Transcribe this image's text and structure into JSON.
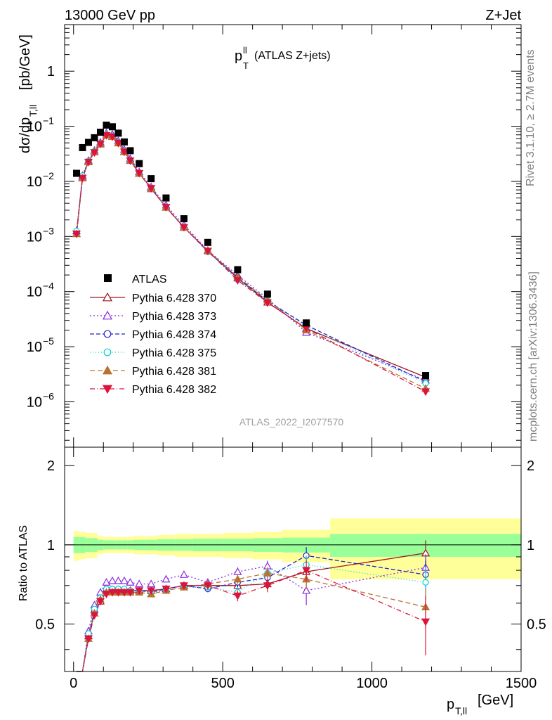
{
  "header": {
    "left": "13000 GeV pp",
    "right": "Z+Jet",
    "panel_title_main": "p",
    "panel_title_sup": "ll",
    "panel_title_sub": "T",
    "panel_title_rest": "(ATLAS Z+jets)",
    "analysis_id": "ATLAS_2022_I2077570",
    "side_rivet": "Rivet 3.1.10, ≥ 2.7M events",
    "side_mcplots": "mcplots.cern.ch [arXiv:1306.3436]"
  },
  "axes": {
    "ylabel_main": "dσ/dp",
    "ylabel_main_sub": "T,ll",
    "ylabel_main_unit": "[pb/GeV]",
    "ylabel_ratio": "Ratio to ATLAS",
    "xlabel_main": "p",
    "xlabel_sub": "T,ll",
    "xlabel_unit": "[GeV]",
    "x_ticks": [
      "0",
      "500",
      "1000",
      "1500"
    ],
    "y_main_ticks": [
      {
        "base": "10",
        "exp": "−6",
        "v": 1e-06
      },
      {
        "base": "10",
        "exp": "−5",
        "v": 1e-05
      },
      {
        "base": "10",
        "exp": "−4",
        "v": 0.0001
      },
      {
        "base": "10",
        "exp": "−3",
        "v": 0.001
      },
      {
        "base": "10",
        "exp": "−2",
        "v": 0.01
      },
      {
        "base": "10",
        "exp": "−1",
        "v": 0.1
      },
      {
        "base": "1",
        "exp": "",
        "v": 1
      }
    ],
    "y_ratio_ticks": [
      "0.5",
      "1",
      "2"
    ]
  },
  "chart_data": {
    "type": "scatter",
    "xlim": [
      -30,
      1500
    ],
    "ylim_main": [
      1.5e-07,
      7
    ],
    "ylim_ratio": [
      0.33,
      2.35
    ],
    "ylog": true,
    "x": [
      10,
      30,
      50,
      70,
      90,
      110,
      130,
      150,
      170,
      190,
      220,
      260,
      310,
      370,
      450,
      550,
      650,
      780,
      1180
    ],
    "xerr_edges": [
      0,
      20,
      40,
      60,
      80,
      100,
      120,
      140,
      160,
      180,
      200,
      240,
      280,
      340,
      400,
      500,
      600,
      700,
      860,
      1500
    ],
    "atlas": [
      0.014,
      0.041,
      0.051,
      0.062,
      0.078,
      0.105,
      0.098,
      0.075,
      0.052,
      0.036,
      0.021,
      0.0112,
      0.005,
      0.0021,
      0.00078,
      0.00025,
      9e-05,
      2.7e-05,
      3e-06
    ],
    "ratio_band_inner": [
      0.07,
      0.07,
      0.06,
      0.06,
      0.045,
      0.04,
      0.04,
      0.04,
      0.04,
      0.04,
      0.045,
      0.045,
      0.05,
      0.05,
      0.055,
      0.055,
      0.06,
      0.065,
      0.1
    ],
    "ratio_band_outer": [
      0.13,
      0.12,
      0.11,
      0.11,
      0.08,
      0.07,
      0.07,
      0.07,
      0.07,
      0.07,
      0.08,
      0.08,
      0.09,
      0.1,
      0.1,
      0.11,
      0.12,
      0.14,
      0.26
    ],
    "series": [
      {
        "name": "Pythia 6.428 370",
        "color": "#a0141e",
        "marker": "triangle-up-open",
        "dash": "",
        "ratio": [
          0.08,
          0.29,
          0.45,
          0.55,
          0.61,
          0.66,
          0.67,
          0.67,
          0.67,
          0.67,
          0.67,
          0.67,
          0.68,
          0.7,
          0.7,
          0.7,
          0.71,
          0.79,
          0.93
        ],
        "ratio_err": [
          0,
          0,
          0,
          0,
          0,
          0,
          0,
          0,
          0,
          0,
          0,
          0,
          0,
          0,
          0,
          0,
          0,
          0.06,
          0.11
        ]
      },
      {
        "name": "Pythia 6.428 373",
        "color": "#8a2be2",
        "marker": "triangle-up-open",
        "dash": "2,3",
        "ratio": [
          0.09,
          0.31,
          0.47,
          0.59,
          0.66,
          0.72,
          0.73,
          0.73,
          0.73,
          0.72,
          0.71,
          0.71,
          0.74,
          0.77,
          0.72,
          0.79,
          0.83,
          0.67,
          0.82
        ],
        "ratio_err": [
          0,
          0,
          0,
          0,
          0,
          0,
          0,
          0,
          0,
          0,
          0,
          0,
          0,
          0,
          0.02,
          0.03,
          0.04,
          0.08,
          0.1
        ]
      },
      {
        "name": "Pythia 6.428 374",
        "color": "#2222cc",
        "marker": "circle-open",
        "dash": "6,3",
        "ratio": [
          0.08,
          0.3,
          0.45,
          0.56,
          0.63,
          0.67,
          0.68,
          0.68,
          0.67,
          0.67,
          0.67,
          0.66,
          0.68,
          0.7,
          0.68,
          0.72,
          0.75,
          0.91,
          0.77
        ],
        "ratio_err": [
          0,
          0,
          0,
          0,
          0,
          0,
          0,
          0,
          0,
          0,
          0,
          0,
          0,
          0,
          0.02,
          0.03,
          0.04,
          0.07,
          0.1
        ]
      },
      {
        "name": "Pythia 6.428 375",
        "color": "#00cfcf",
        "marker": "circle-open",
        "dash": "1,3",
        "ratio": [
          0.09,
          0.31,
          0.46,
          0.57,
          0.63,
          0.68,
          0.68,
          0.68,
          0.68,
          0.67,
          0.67,
          0.66,
          0.67,
          0.69,
          0.69,
          0.66,
          0.78,
          0.84,
          0.72
        ],
        "ratio_err": [
          0,
          0,
          0,
          0,
          0,
          0,
          0,
          0,
          0,
          0,
          0,
          0,
          0,
          0,
          0.02,
          0.03,
          0.04,
          0.07,
          0.1
        ]
      },
      {
        "name": "Pythia 6.428 381",
        "color": "#b87333",
        "marker": "triangle-up-filled",
        "dash": "7,4",
        "ratio": [
          0.08,
          0.28,
          0.44,
          0.55,
          0.62,
          0.66,
          0.66,
          0.66,
          0.66,
          0.66,
          0.66,
          0.65,
          0.67,
          0.69,
          0.71,
          0.74,
          0.78,
          0.74,
          0.58
        ],
        "ratio_err": [
          0,
          0,
          0,
          0,
          0,
          0,
          0,
          0,
          0,
          0,
          0,
          0,
          0,
          0,
          0.02,
          0.03,
          0.04,
          0.06,
          0.1
        ]
      },
      {
        "name": "Pythia 6.428 382",
        "color": "#dc143c",
        "marker": "triangle-down-filled",
        "dash": "7,3,1,3",
        "ratio": [
          0.08,
          0.28,
          0.44,
          0.54,
          0.61,
          0.65,
          0.66,
          0.66,
          0.66,
          0.66,
          0.67,
          0.67,
          0.68,
          0.7,
          0.7,
          0.64,
          0.7,
          0.8,
          0.51
        ],
        "ratio_err": [
          0,
          0,
          0,
          0,
          0,
          0,
          0,
          0,
          0,
          0,
          0,
          0,
          0,
          0,
          0.02,
          0.03,
          0.04,
          0.07,
          0.13
        ]
      }
    ]
  }
}
